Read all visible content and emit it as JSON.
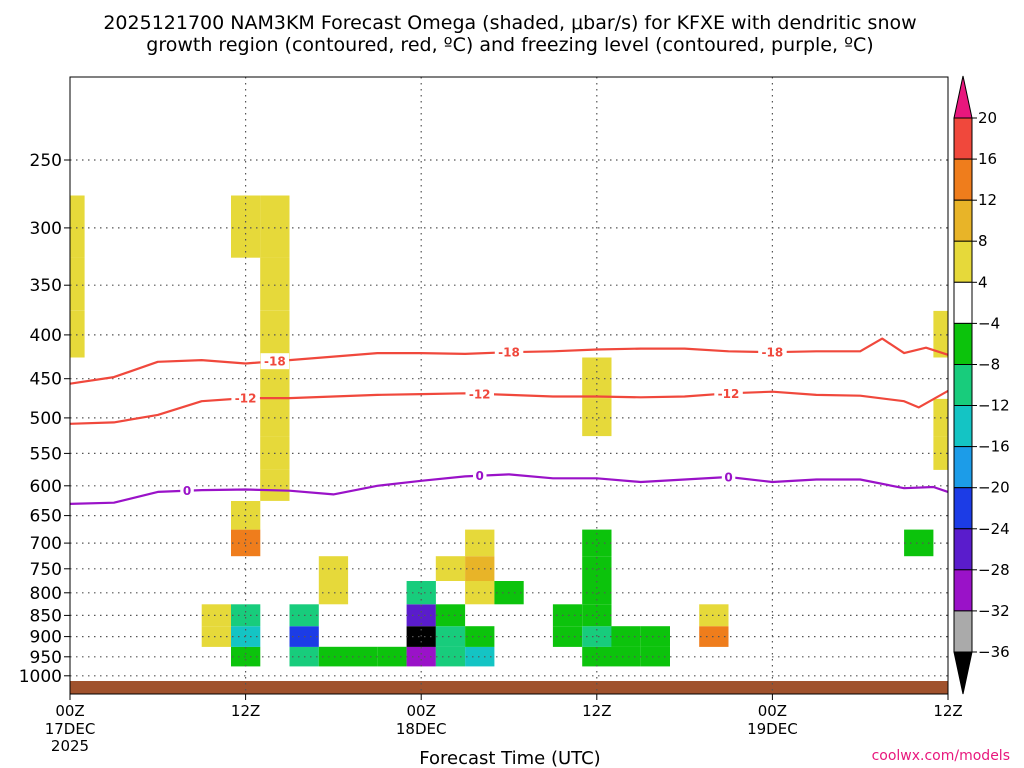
{
  "title_lines": [
    "2025121700 NAM3KM Forecast Omega (shaded, μbar/s) for KFXE with dendritic snow",
    "growth region (contoured, red, ºC) and freezing level (contoured, purple, ºC)"
  ],
  "x_axis_title": "Forecast Time (UTC)",
  "credit": "coolwx.com/models",
  "colors": {
    "dgz_contour": "#f0483c",
    "freezing_contour": "#9a12c8",
    "ground": "#a0522d",
    "grid": "#555555"
  },
  "chart_data": {
    "type": "heatmap",
    "title": "2025121700 NAM3KM Forecast Omega (shaded, μbar/s) for KFXE with dendritic snow growth region (contoured, red, ºC) and freezing level (contoured, purple, ºC)",
    "xlabel": "Forecast Time (UTC)",
    "ylabel": "",
    "x_ticks": [
      {
        "hour": 0,
        "label": "00Z",
        "sub": [
          "17DEC",
          "2025"
        ]
      },
      {
        "hour": 12,
        "label": "12Z",
        "sub": []
      },
      {
        "hour": 24,
        "label": "00Z",
        "sub": [
          "18DEC"
        ]
      },
      {
        "hour": 36,
        "label": "12Z",
        "sub": []
      },
      {
        "hour": 48,
        "label": "00Z",
        "sub": [
          "19DEC"
        ]
      },
      {
        "hour": 60,
        "label": "12Z",
        "sub": []
      }
    ],
    "xlim": [
      0,
      60
    ],
    "ylim_hpa": [
      1050,
      200
    ],
    "y_ticks_hpa": [
      250,
      300,
      350,
      400,
      450,
      500,
      550,
      600,
      650,
      700,
      750,
      800,
      850,
      900,
      950,
      1000
    ],
    "grid": true,
    "legend_position": "right",
    "colorbar": {
      "units": "μbar/s",
      "levels": [
        20,
        16,
        12,
        8,
        4,
        -4,
        -8,
        -12,
        -16,
        -20,
        -24,
        -28,
        -32,
        -36
      ],
      "bins": [
        {
          "lo": 20,
          "hi": null,
          "color": "#e8177d"
        },
        {
          "lo": 16,
          "hi": 20,
          "color": "#f0483c"
        },
        {
          "lo": 12,
          "hi": 16,
          "color": "#ef7d1c"
        },
        {
          "lo": 8,
          "hi": 12,
          "color": "#e8b428"
        },
        {
          "lo": 4,
          "hi": 8,
          "color": "#e6d93a"
        },
        {
          "lo": -4,
          "hi": 4,
          "color": "#ffffff"
        },
        {
          "lo": -8,
          "hi": -4,
          "color": "#0cc30c"
        },
        {
          "lo": -12,
          "hi": -8,
          "color": "#18cc7c"
        },
        {
          "lo": -16,
          "hi": -12,
          "color": "#14c4c4"
        },
        {
          "lo": -20,
          "hi": -16,
          "color": "#1c9ce8"
        },
        {
          "lo": -24,
          "hi": -20,
          "color": "#1c3ce6"
        },
        {
          "lo": -28,
          "hi": -24,
          "color": "#5a1ccc"
        },
        {
          "lo": -32,
          "hi": -28,
          "color": "#9a12c8"
        },
        {
          "lo": -36,
          "hi": -32,
          "color": "#aaaaaa"
        },
        {
          "lo": null,
          "hi": -36,
          "color": "#000000"
        }
      ]
    },
    "omega_grid": {
      "units": "μbar/s",
      "x_hours": [
        0,
        2,
        4,
        6,
        8,
        10,
        12,
        14,
        16,
        18,
        20,
        22,
        24,
        26,
        28,
        30,
        32,
        34,
        36,
        38,
        40,
        42,
        44,
        46,
        48,
        50,
        52,
        54,
        56,
        58,
        60
      ],
      "levels_hpa": [
        1000,
        950,
        900,
        850,
        800,
        750,
        700,
        650,
        600,
        550,
        500,
        450,
        400,
        350,
        300,
        250
      ],
      "values": [
        [
          0,
          0,
          0,
          0,
          0,
          0,
          0,
          0,
          0,
          0,
          0,
          0,
          0,
          0,
          0,
          0,
          0,
          0,
          0,
          0,
          0,
          0,
          0,
          0,
          0,
          0,
          0,
          0,
          0,
          0,
          0
        ],
        [
          0,
          0,
          0,
          0,
          0,
          0,
          -8,
          0,
          -10,
          -6,
          -8,
          -6,
          -30,
          -12,
          -14,
          0,
          0,
          0,
          -8,
          -6,
          -6,
          0,
          0,
          0,
          0,
          0,
          0,
          0,
          0,
          0,
          0
        ],
        [
          0,
          0,
          0,
          0,
          0,
          5,
          -16,
          0,
          -22,
          0,
          0,
          0,
          -38,
          -10,
          -8,
          0,
          0,
          -8,
          -10,
          -8,
          -6,
          0,
          12,
          0,
          0,
          0,
          0,
          0,
          0,
          0,
          0
        ],
        [
          0,
          0,
          0,
          0,
          0,
          5,
          -10,
          0,
          -12,
          0,
          0,
          0,
          -26,
          -6,
          0,
          0,
          0,
          -6,
          -8,
          0,
          0,
          0,
          6,
          0,
          0,
          0,
          0,
          0,
          0,
          0,
          0
        ],
        [
          0,
          0,
          0,
          0,
          0,
          0,
          0,
          0,
          0,
          6,
          0,
          0,
          -10,
          0,
          6,
          -6,
          0,
          0,
          -6,
          0,
          0,
          0,
          0,
          0,
          0,
          0,
          0,
          0,
          0,
          0,
          0
        ],
        [
          0,
          0,
          0,
          0,
          0,
          0,
          0,
          0,
          0,
          5,
          0,
          0,
          0,
          5,
          10,
          0,
          0,
          0,
          -6,
          0,
          0,
          0,
          0,
          0,
          0,
          0,
          0,
          0,
          0,
          0,
          0
        ],
        [
          0,
          0,
          0,
          0,
          0,
          0,
          14,
          0,
          0,
          0,
          0,
          0,
          0,
          0,
          6,
          0,
          0,
          0,
          -6,
          0,
          0,
          0,
          0,
          0,
          0,
          0,
          0,
          0,
          0,
          -6,
          0
        ],
        [
          0,
          0,
          0,
          0,
          0,
          0,
          5,
          0,
          0,
          0,
          0,
          0,
          0,
          0,
          0,
          0,
          0,
          0,
          0,
          0,
          0,
          0,
          0,
          0,
          0,
          0,
          0,
          0,
          0,
          0,
          0
        ],
        [
          0,
          0,
          0,
          0,
          0,
          0,
          0,
          6,
          0,
          0,
          0,
          0,
          0,
          0,
          0,
          0,
          0,
          0,
          0,
          0,
          0,
          0,
          0,
          0,
          0,
          0,
          0,
          0,
          0,
          0,
          0
        ],
        [
          0,
          0,
          0,
          0,
          0,
          0,
          0,
          6,
          0,
          0,
          0,
          0,
          0,
          0,
          0,
          0,
          0,
          0,
          0,
          0,
          0,
          0,
          0,
          0,
          0,
          0,
          0,
          0,
          0,
          0,
          5
        ],
        [
          0,
          0,
          0,
          0,
          0,
          0,
          0,
          6,
          0,
          0,
          0,
          0,
          0,
          0,
          0,
          0,
          0,
          0,
          6,
          0,
          0,
          0,
          0,
          0,
          0,
          0,
          0,
          0,
          0,
          0,
          5
        ],
        [
          0,
          0,
          0,
          0,
          0,
          0,
          0,
          6,
          0,
          0,
          0,
          0,
          0,
          0,
          0,
          0,
          0,
          0,
          6,
          0,
          0,
          0,
          0,
          0,
          0,
          0,
          0,
          0,
          0,
          0,
          0
        ],
        [
          5,
          0,
          0,
          0,
          0,
          0,
          0,
          6,
          0,
          0,
          0,
          0,
          0,
          0,
          0,
          0,
          0,
          0,
          0,
          0,
          0,
          0,
          0,
          0,
          0,
          0,
          0,
          0,
          0,
          0,
          5
        ],
        [
          6,
          0,
          0,
          0,
          0,
          0,
          0,
          5,
          0,
          0,
          0,
          0,
          0,
          0,
          0,
          0,
          0,
          0,
          0,
          0,
          0,
          0,
          0,
          0,
          0,
          0,
          0,
          0,
          0,
          0,
          0
        ],
        [
          5,
          0,
          0,
          0,
          0,
          0,
          5,
          5,
          0,
          0,
          0,
          0,
          0,
          0,
          0,
          0,
          0,
          0,
          0,
          0,
          0,
          0,
          0,
          0,
          0,
          0,
          0,
          0,
          0,
          0,
          0
        ],
        [
          0,
          0,
          0,
          0,
          0,
          0,
          0,
          0,
          0,
          0,
          0,
          0,
          0,
          0,
          0,
          0,
          0,
          0,
          0,
          0,
          0,
          0,
          0,
          0,
          0,
          0,
          0,
          0,
          0,
          0,
          0
        ]
      ]
    },
    "series": [
      {
        "name": "-18",
        "units": "ºC",
        "color": "#f0483c",
        "label_at_hours": [
          14,
          30,
          48
        ],
        "points": [
          [
            0,
            456
          ],
          [
            3,
            448
          ],
          [
            6,
            430
          ],
          [
            9,
            428
          ],
          [
            12,
            432
          ],
          [
            15,
            428
          ],
          [
            18,
            424
          ],
          [
            21,
            420
          ],
          [
            24,
            420
          ],
          [
            27,
            421
          ],
          [
            30,
            419
          ],
          [
            33,
            418
          ],
          [
            36,
            416
          ],
          [
            39,
            415
          ],
          [
            42,
            415
          ],
          [
            45,
            418
          ],
          [
            48,
            419
          ],
          [
            51,
            418
          ],
          [
            54,
            418
          ],
          [
            55.5,
            404
          ],
          [
            57,
            420
          ],
          [
            58.5,
            414
          ],
          [
            60,
            422
          ]
        ]
      },
      {
        "name": "-12",
        "units": "ºC",
        "color": "#f0483c",
        "label_at_hours": [
          12,
          28,
          45
        ],
        "points": [
          [
            0,
            508
          ],
          [
            3,
            506
          ],
          [
            6,
            496
          ],
          [
            9,
            478
          ],
          [
            12,
            474
          ],
          [
            15,
            474
          ],
          [
            18,
            472
          ],
          [
            21,
            470
          ],
          [
            24,
            469
          ],
          [
            27,
            468
          ],
          [
            30,
            470
          ],
          [
            33,
            472
          ],
          [
            36,
            472
          ],
          [
            39,
            473
          ],
          [
            42,
            472
          ],
          [
            45,
            468
          ],
          [
            48,
            466
          ],
          [
            51,
            470
          ],
          [
            54,
            471
          ],
          [
            57,
            478
          ],
          [
            58,
            486
          ],
          [
            60,
            465
          ]
        ]
      },
      {
        "name": "0",
        "units": "ºC",
        "color": "#9a12c8",
        "label_at_hours": [
          8,
          28,
          45
        ],
        "points": [
          [
            0,
            630
          ],
          [
            3,
            628
          ],
          [
            6,
            610
          ],
          [
            9,
            607
          ],
          [
            12,
            606
          ],
          [
            15,
            608
          ],
          [
            18,
            614
          ],
          [
            21,
            600
          ],
          [
            24,
            592
          ],
          [
            27,
            585
          ],
          [
            30,
            582
          ],
          [
            33,
            588
          ],
          [
            36,
            588
          ],
          [
            39,
            594
          ],
          [
            42,
            590
          ],
          [
            45,
            586
          ],
          [
            48,
            594
          ],
          [
            51,
            590
          ],
          [
            54,
            590
          ],
          [
            57,
            604
          ],
          [
            59,
            602
          ],
          [
            60,
            610
          ]
        ]
      }
    ]
  }
}
